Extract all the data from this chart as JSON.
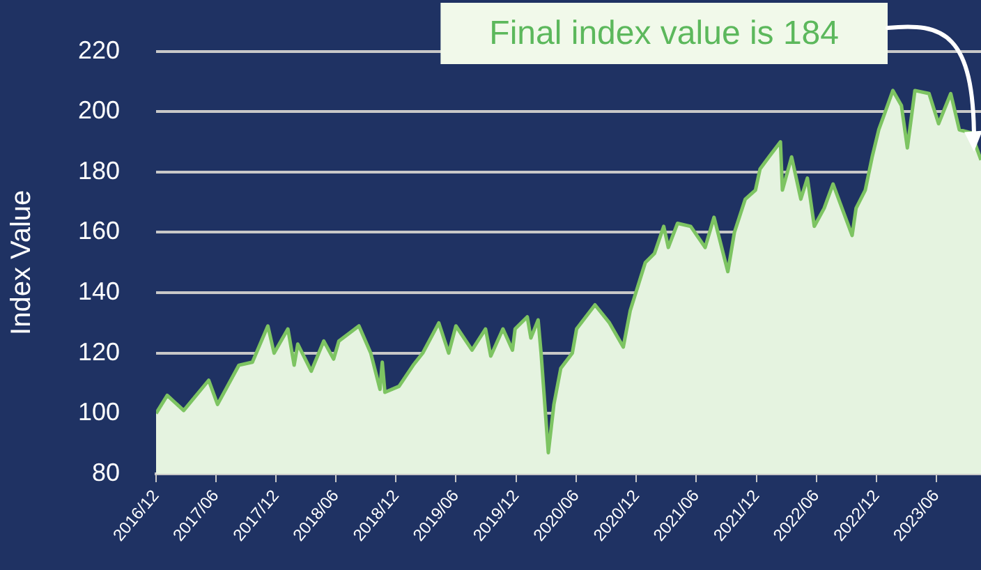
{
  "chart_data": {
    "type": "area",
    "ylabel": "Index Value",
    "color": "#7dc462",
    "x": [
      "2016-12-01",
      "2017-01-04",
      "2017-02-23",
      "2017-05-10",
      "2017-06-06",
      "2017-08-10",
      "2017-09-20",
      "2017-11-06",
      "2017-11-25",
      "2018-01-06",
      "2018-01-25",
      "2018-02-05",
      "2018-03-18",
      "2018-04-25",
      "2018-05-25",
      "2018-06-10",
      "2018-08-10",
      "2018-09-15",
      "2018-10-13",
      "2018-10-20",
      "2018-10-28",
      "2018-12-10",
      "2019-01-22",
      "2019-02-20",
      "2019-04-10",
      "2019-05-10",
      "2019-06-01",
      "2019-07-20",
      "2019-08-30",
      "2019-09-15",
      "2019-10-22",
      "2019-11-20",
      "2019-11-28",
      "2020-01-04",
      "2020-01-15",
      "2020-02-06",
      "2020-02-15",
      "2020-03-08",
      "2020-03-25",
      "2020-04-15",
      "2020-05-20",
      "2020-06-02",
      "2020-07-28",
      "2020-09-10",
      "2020-10-22",
      "2020-11-12",
      "2020-12-28",
      "2021-01-25",
      "2021-02-22",
      "2021-03-08",
      "2021-04-05",
      "2021-05-15",
      "2021-06-28",
      "2021-07-25",
      "2021-09-05",
      "2021-09-25",
      "2021-10-28",
      "2021-11-28",
      "2021-12-12",
      "2022-01-08",
      "2022-02-12",
      "2022-02-18",
      "2022-03-18",
      "2022-04-15",
      "2022-05-05",
      "2022-05-26",
      "2022-06-25",
      "2022-07-22",
      "2022-09-18",
      "2022-09-30",
      "2022-10-28",
      "2022-11-18",
      "2022-12-08",
      "2022-12-28",
      "2023-01-20",
      "2023-02-15",
      "2023-03-05",
      "2023-03-28",
      "2023-05-10",
      "2023-06-08",
      "2023-07-15",
      "2023-08-10",
      "2023-09-15",
      "2023-10-05",
      "2023-10-15"
    ],
    "values": [
      100,
      106,
      101,
      111,
      103,
      116,
      117,
      129,
      120,
      128,
      116,
      123,
      114,
      124,
      118,
      124,
      129,
      120,
      108,
      117,
      107,
      109,
      116,
      120,
      130,
      120,
      129,
      121,
      128,
      119,
      128,
      121,
      128,
      132,
      125,
      131,
      120,
      87,
      103,
      115,
      120,
      128,
      136,
      130,
      122,
      134,
      150,
      153,
      162,
      155,
      163,
      162,
      155,
      165,
      147,
      160,
      171,
      174,
      181,
      185,
      190,
      174,
      185,
      171,
      178,
      162,
      168,
      176,
      159,
      168,
      174,
      185,
      194,
      200,
      207,
      202,
      188,
      207,
      206,
      196,
      206,
      194,
      193,
      187,
      184
    ],
    "xlim": [
      "2016-12-01",
      "2023-10-15"
    ],
    "xticks": [
      {
        "value": "2016-12",
        "label": "2016/12"
      },
      {
        "value": "2017-06",
        "label": "2017/06"
      },
      {
        "value": "2017-12",
        "label": "2017/12"
      },
      {
        "value": "2018-06",
        "label": "2018/06"
      },
      {
        "value": "2018-12",
        "label": "2018/12"
      },
      {
        "value": "2019-06",
        "label": "2019/06"
      },
      {
        "value": "2019-12",
        "label": "2019/12"
      },
      {
        "value": "2020-06",
        "label": "2020/06"
      },
      {
        "value": "2020-12",
        "label": "2020/12"
      },
      {
        "value": "2021-06",
        "label": "2021/06"
      },
      {
        "value": "2021-12",
        "label": "2021/12"
      },
      {
        "value": "2022-06",
        "label": "2022/06"
      },
      {
        "value": "2022-12",
        "label": "2022/12"
      },
      {
        "value": "2023-06",
        "label": "2023/06"
      }
    ],
    "ylim": [
      80,
      220
    ],
    "yticks": [
      80,
      100,
      120,
      140,
      160,
      180,
      200,
      220
    ],
    "grid": "y",
    "annotations": [
      "Final index value is 184"
    ]
  }
}
